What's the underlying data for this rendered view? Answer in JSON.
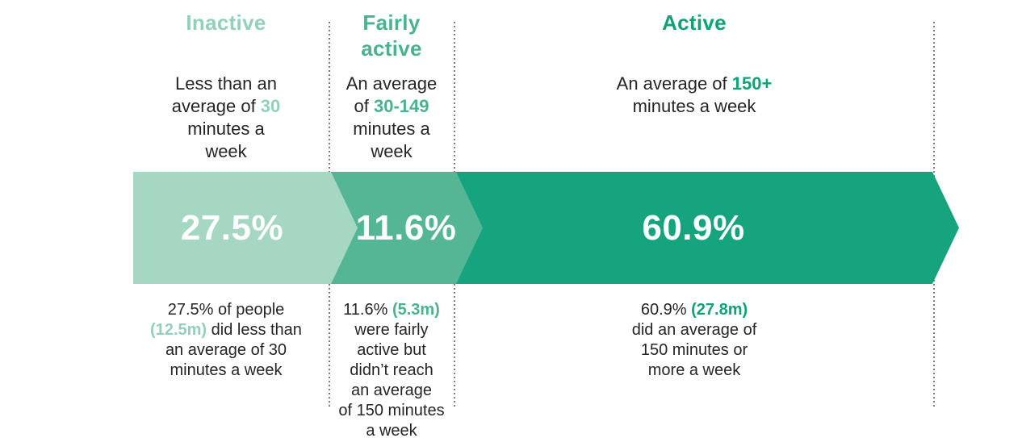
{
  "colors": {
    "light": "#a6d7c3",
    "light_text": "#93d0ba",
    "medium": "#54b695",
    "medium_text": "#4bb28f",
    "dark": "#16a47e",
    "dark_text": "#0fa276",
    "ink": "#272425",
    "divider": "#7c7c7c"
  },
  "chart_data": {
    "type": "bar",
    "orientation": "horizontal_stacked_arrow",
    "title": "",
    "categories": [
      "Inactive",
      "Fairly active",
      "Active"
    ],
    "values": [
      27.5,
      11.6,
      60.9
    ],
    "unit": "%",
    "population_millions": [
      12.5,
      5.3,
      27.8
    ],
    "definitions": [
      "Less than an average of 30 minutes a week",
      "An average of 30-149 minutes a week",
      "An average of 150+ minutes a week"
    ],
    "descriptions": [
      "27.5% of people (12.5m) did less than an average of 30 minutes a week",
      "11.6% (5.3m) were fairly active but didn’t reach an average of 150 minutes a week",
      "60.9% (27.8m) did an average of 150 minutes or more a week"
    ],
    "legend_position": "none",
    "grid": false
  },
  "columns": [
    {
      "id": "inactive",
      "title": "Inactive",
      "percent": "27.5%",
      "definition_lines": [
        [
          {
            "t": "Less than an"
          }
        ],
        [
          {
            "t": "average of "
          },
          {
            "t": "30",
            "c": "a"
          }
        ],
        [
          {
            "t": "minutes a"
          }
        ],
        [
          {
            "t": "week"
          }
        ]
      ],
      "stat_lines": [
        [
          {
            "t": "27.5% of people"
          }
        ],
        [
          {
            "t": "(12.5m)",
            "c": "a"
          },
          {
            "t": " did less than"
          }
        ],
        [
          {
            "t": "an average of 30"
          }
        ],
        [
          {
            "t": "minutes a week"
          }
        ]
      ]
    },
    {
      "id": "fairly-active",
      "title": "Fairly\nactive",
      "percent": "11.6%",
      "definition_lines": [
        [
          {
            "t": "An average"
          }
        ],
        [
          {
            "t": "of "
          },
          {
            "t": "30-149",
            "c": "a"
          }
        ],
        [
          {
            "t": "minutes a"
          }
        ],
        [
          {
            "t": "week"
          }
        ]
      ],
      "stat_lines": [
        [
          {
            "t": "11.6% "
          },
          {
            "t": "(5.3m)",
            "c": "a"
          }
        ],
        [
          {
            "t": "were fairly"
          }
        ],
        [
          {
            "t": "active but"
          }
        ],
        [
          {
            "t": "didn’t reach"
          }
        ],
        [
          {
            "t": "an average"
          }
        ],
        [
          {
            "t": "of 150 minutes"
          }
        ],
        [
          {
            "t": "a week"
          }
        ]
      ]
    },
    {
      "id": "active",
      "title": "Active",
      "percent": "60.9%",
      "definition_lines": [
        [
          {
            "t": "An average of "
          },
          {
            "t": "150+",
            "c": "a"
          }
        ],
        [
          {
            "t": "minutes a week"
          }
        ]
      ],
      "stat_lines": [
        [
          {
            "t": "60.9% "
          },
          {
            "t": "(27.8m)",
            "c": "a"
          }
        ],
        [
          {
            "t": "did an average of"
          }
        ],
        [
          {
            "t": "150 minutes or"
          }
        ],
        [
          {
            "t": "more a week"
          }
        ]
      ]
    }
  ]
}
